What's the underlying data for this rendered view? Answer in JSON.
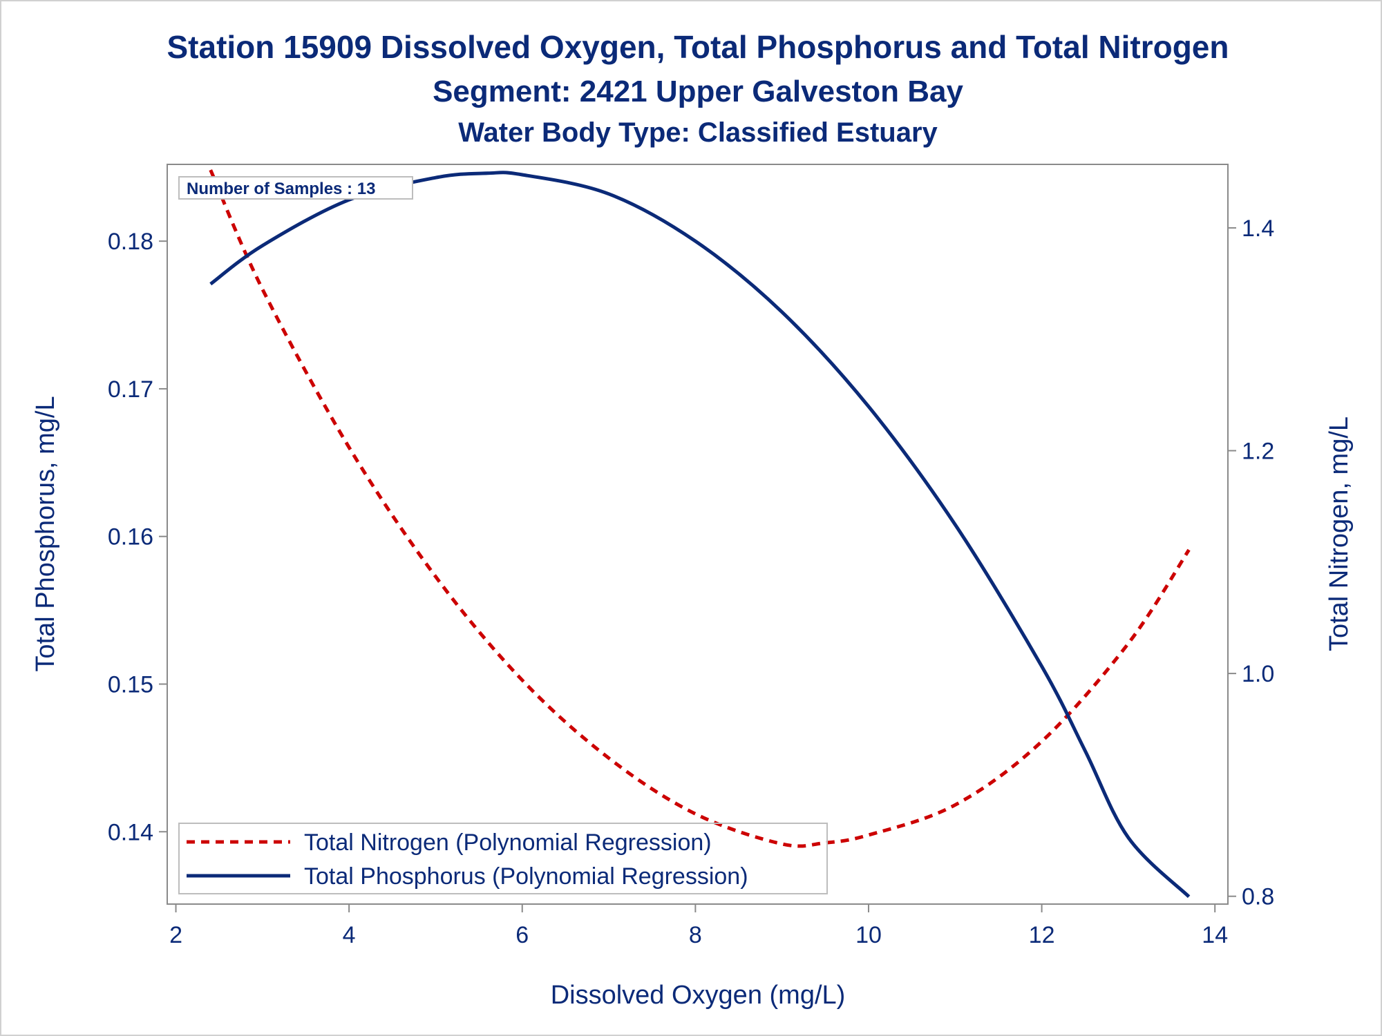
{
  "colors": {
    "text": "#0b2a78",
    "phosphorus": "#0b2a78",
    "nitrogen": "#cc0000",
    "axis": "#8a8a8a",
    "legend_border": "#bdbdbd"
  },
  "chart_data": {
    "type": "line",
    "title": "Station 15909  Dissolved Oxygen, Total Phosphorus and Total Nitrogen",
    "subtitle": "Segment: 2421  Upper Galveston Bay",
    "subtitle2": "Water Body Type: Classified Estuary",
    "xlabel": "Dissolved Oxygen (mg/L)",
    "ylabel_left": "Total Phosphorus, mg/L",
    "ylabel_right": "Total Nitrogen, mg/L",
    "xlim": [
      1.9,
      14.15
    ],
    "ylim_left": [
      0.1351,
      0.1852
    ],
    "ylim_right": [
      0.793,
      1.457
    ],
    "x_ticks": [
      "2",
      "4",
      "6",
      "8",
      "10",
      "12",
      "14"
    ],
    "x_tick_values": [
      2,
      4,
      6,
      8,
      10,
      12,
      14
    ],
    "y_left_ticks": [
      "0.14",
      "0.15",
      "0.16",
      "0.17",
      "0.18"
    ],
    "y_left_tick_values": [
      0.14,
      0.15,
      0.16,
      0.17,
      0.18
    ],
    "y_right_ticks": [
      "0.8",
      "1.0",
      "1.2",
      "1.4"
    ],
    "y_right_tick_values": [
      0.8,
      1.0,
      1.2,
      1.4
    ],
    "annotation": "Number of Samples : 13",
    "legend_position": "bottom-left",
    "series": [
      {
        "name": "Total Nitrogen (Polynomial Regression)",
        "axis": "right",
        "style": "dashed",
        "x": [
          2.4,
          3.0,
          4.0,
          5.0,
          6.0,
          7.0,
          8.0,
          9.0,
          9.5,
          10.0,
          11.0,
          12.0,
          13.0,
          13.7
        ],
        "y": [
          1.452,
          1.345,
          1.203,
          1.087,
          0.994,
          0.924,
          0.874,
          0.847,
          0.848,
          0.855,
          0.882,
          0.939,
          1.027,
          1.111
        ]
      },
      {
        "name": "Total Phosphorus (Polynomial Regression)",
        "axis": "left",
        "style": "solid",
        "x": [
          2.4,
          3.0,
          4.0,
          5.0,
          5.6,
          6.0,
          7.0,
          8.0,
          9.0,
          10.0,
          11.0,
          12.0,
          12.5,
          13.0,
          13.7
        ],
        "y": [
          0.1771,
          0.1797,
          0.1828,
          0.1843,
          0.1846,
          0.1845,
          0.1832,
          0.18,
          0.1752,
          0.1688,
          0.1608,
          0.1512,
          0.1455,
          0.1396,
          0.1356
        ]
      }
    ]
  }
}
